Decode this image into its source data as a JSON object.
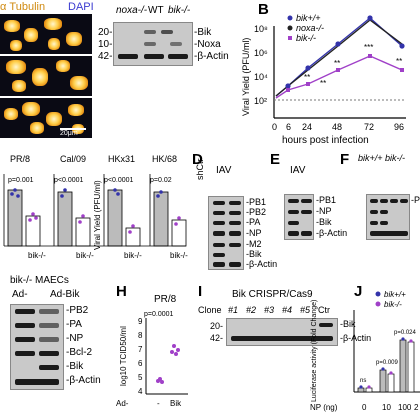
{
  "panelA": {
    "label_tubulin": "α Tubulin",
    "label_dapi": "DAPI",
    "scale_bar": "20μm",
    "blot": {
      "lanes": [
        "noxa-/-",
        "WT",
        "bik-/-"
      ],
      "markers": [
        "20-",
        "10-",
        "42-"
      ],
      "proteins": [
        "-Bik",
        "-Noxa",
        "-β-Actin"
      ]
    }
  },
  "panelB": {
    "letter": "B",
    "legend": [
      "bik+/+",
      "noxa-/-",
      "bik-/-"
    ],
    "ylabel": "Viral Yield (PFU/ml)",
    "xlabel": "hours post infection",
    "xticks": [
      "0",
      "6",
      "24",
      "48",
      "72",
      "96"
    ],
    "yticks": [
      "10²",
      "10⁴",
      "10⁶",
      "10⁸"
    ],
    "stars": [
      "**",
      "***",
      "**",
      "**",
      "**"
    ],
    "colors": {
      "wt": "#3333aa",
      "noxa": "#222222",
      "bik": "#a040c8"
    }
  },
  "panelC": {
    "ylabel": "Viral Yield (PFU/ml)",
    "charts": [
      {
        "title": "PR/8",
        "p": "p=0.001",
        "xtick": "bik-/-"
      },
      {
        "title": "Cal/09",
        "p": "p<0.0001",
        "xtick": "bik-/-"
      },
      {
        "title": "HKx31",
        "p": "p<0.0001",
        "xtick": "bik-/-"
      },
      {
        "title": "HK/68",
        "p": "p=0.02",
        "xtick": "bik-/-"
      }
    ],
    "first_left_tick": "PR/8"
  },
  "panelD": {
    "letter": "D",
    "header": "IAV",
    "lanes": [
      "shCtr",
      "shBik"
    ],
    "markers": [
      "85-",
      "72-",
      "56-",
      "42-",
      "15-",
      "20-",
      "42-"
    ],
    "proteins": [
      "-PB1",
      "-PB2",
      "-PA",
      "-NP",
      "-M2",
      "-Bik",
      "-β-Actin"
    ]
  },
  "panelE": {
    "letter": "E",
    "header": "IAV",
    "lanes": [
      "bik+/+",
      "bik-/-"
    ],
    "markers": [
      "85-",
      "56-",
      "20-",
      "42-"
    ],
    "proteins": [
      "-PB1",
      "-NP",
      "-Bik",
      "-β-Actin"
    ]
  },
  "panelF": {
    "letter": "F",
    "header": "bik+/+ bik-/-",
    "lanes": [
      "HK/68",
      "Cal/09",
      "HK/68",
      "Cal/09"
    ],
    "markers": [
      "85-",
      "56-",
      "20-",
      "42-"
    ],
    "proteins": [
      "-PB",
      "-NP",
      "-Bi",
      "-β-"
    ]
  },
  "panelG": {
    "title": "bik-/- MAECs",
    "cols": [
      "Ad-",
      "Ad-Bik"
    ],
    "proteins": [
      "-PB2",
      "-PA",
      "-NP",
      "-Bcl-2",
      "-Bik",
      "-β-Actin"
    ],
    "signs": [
      "-",
      "+",
      "+",
      "+",
      "+",
      "+"
    ]
  },
  "panelH": {
    "letter": "H",
    "title": "PR/8",
    "p": "p=0.0001",
    "ylabel": "log10 TCID50/ml",
    "yticks": [
      "4",
      "5",
      "6",
      "7",
      "8",
      "9"
    ],
    "xticks": [
      "-",
      "Bik"
    ],
    "xprefix": "Ad-",
    "means": [
      4.9,
      6.8
    ]
  },
  "panelI": {
    "letter": "I",
    "title": "Bik CRISPR/Cas9",
    "clone_label": "Clone",
    "lanes": [
      "#1",
      "#2",
      "#3",
      "#4",
      "#5",
      "Ctr"
    ],
    "markers": [
      "20-",
      "42-"
    ],
    "proteins": [
      "-Bik",
      "-β-Actin"
    ]
  },
  "panelJ": {
    "letter": "J",
    "legend": [
      "bik+/+",
      "bik-/-"
    ],
    "ylabel": "Luciferase activity (Fold Change)",
    "xlabel": "NP (ng)",
    "xticks": [
      "0",
      "10",
      "100",
      "2"
    ],
    "pvals": [
      "ns",
      "p=0.009",
      "p=0.024"
    ]
  }
}
